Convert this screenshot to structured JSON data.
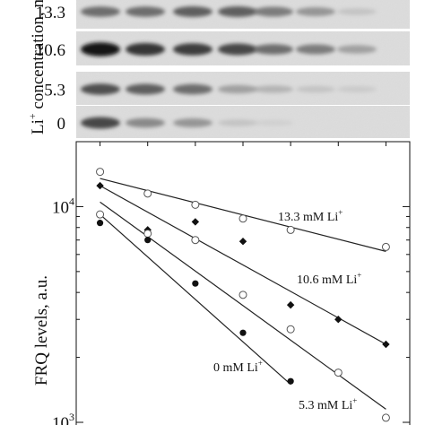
{
  "blot": {
    "ylabel_main": "Li",
    "ylabel_sup": "+",
    "ylabel_rest": " concentration, mM",
    "rows": [
      {
        "label": "13.3",
        "intensities": [
          0.55,
          0.55,
          0.6,
          0.6,
          0.5,
          0.4,
          0.15
        ]
      },
      {
        "label": "10.6",
        "intensities": [
          0.95,
          0.8,
          0.75,
          0.7,
          0.55,
          0.5,
          0.35
        ]
      },
      {
        "label": "5.3",
        "intensities": [
          0.65,
          0.6,
          0.55,
          0.35,
          0.25,
          0.15,
          0.1
        ]
      },
      {
        "label": "0",
        "intensities": [
          0.7,
          0.45,
          0.4,
          0.15,
          0.05,
          0.0,
          0.0
        ]
      }
    ]
  },
  "chart_data": {
    "type": "scatter",
    "xlabel": "",
    "ylabel": "FRQ levels, a.u.",
    "yscale": "log",
    "ylim": [
      850,
      20000
    ],
    "xlim": [
      0,
      14
    ],
    "yticks": [
      {
        "value": 1000,
        "base": "10",
        "exp": "3"
      },
      {
        "value": 10000,
        "base": "10",
        "exp": "4"
      }
    ],
    "grid": false,
    "series": [
      {
        "name": "13.3 mM Li",
        "name_sup": "+",
        "marker": "open-circle",
        "x": [
          1,
          3,
          5,
          7,
          9,
          13
        ],
        "y": [
          14500,
          11500,
          10200,
          8800,
          7800,
          6500
        ],
        "fit": [
          [
            1,
            13500
          ],
          [
            13,
            6200
          ]
        ]
      },
      {
        "name": "10.6 mM Li",
        "name_sup": "+",
        "marker": "filled-diamond",
        "x": [
          1,
          3,
          5,
          7,
          9,
          11,
          13
        ],
        "y": [
          12500,
          7800,
          8500,
          6900,
          3500,
          3000,
          2300
        ],
        "fit": [
          [
            1,
            12500
          ],
          [
            13,
            2300
          ]
        ]
      },
      {
        "name": "5.3 mM Li",
        "name_sup": "+",
        "marker": "open-circle",
        "x": [
          1,
          3,
          5,
          7,
          9,
          11,
          13
        ],
        "y": [
          9200,
          7500,
          7000,
          3900,
          2700,
          1700,
          1050
        ],
        "fit": [
          [
            1,
            10500
          ],
          [
            13,
            1150
          ]
        ]
      },
      {
        "name": "0 mM Li",
        "name_sup": "+",
        "marker": "filled-circle",
        "x": [
          1,
          3,
          5,
          7,
          9
        ],
        "y": [
          8400,
          7000,
          4400,
          2600,
          1550
        ],
        "fit": [
          [
            1,
            9200
          ],
          [
            9,
            1500
          ]
        ]
      }
    ]
  }
}
